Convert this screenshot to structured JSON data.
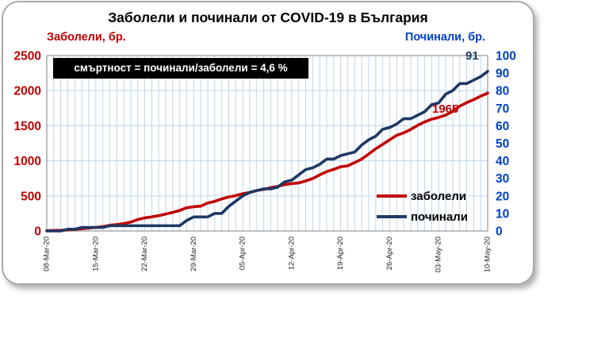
{
  "chart_data": {
    "type": "line",
    "title": "Заболели и починали от COVID-19 в България",
    "annotation": "смъртност = починали/заболели = 4,6 %",
    "grid_color": "#BDD7EE",
    "frame_color": "#808080",
    "legend_position": "inside-bottom-right",
    "left_axis": {
      "title": "Заболели, бр.",
      "min": 0,
      "max": 2500,
      "step": 500,
      "color": "#C00000",
      "ticks": [
        "0",
        "500",
        "1000",
        "1500",
        "2000",
        "2500"
      ]
    },
    "right_axis": {
      "title": "Починали, бр.",
      "min": 0,
      "max": 100,
      "step": 10,
      "color": "#0040C0",
      "ticks": [
        "0",
        "10",
        "20",
        "30",
        "40",
        "50",
        "60",
        "70",
        "80",
        "90",
        "100"
      ]
    },
    "x_tick_labels": [
      "08-Mar-20",
      "15-Mar-20",
      "22-Mar-20",
      "29-Mar-20",
      "05-Apr-20",
      "12-Apr-20",
      "19-Apr-20",
      "26-Apr-20",
      "03-May-20",
      "10-May-20"
    ],
    "x_tick_every_days": 7,
    "days": 64,
    "series": [
      {
        "name": "заболели",
        "axis": "left",
        "color": "#C00000",
        "end_label": "1965",
        "values": [
          4,
          6,
          10,
          15,
          23,
          31,
          41,
          51,
          62,
          81,
          92,
          105,
          127,
          163,
          187,
          201,
          218,
          242,
          264,
          293,
          331,
          346,
          354,
          399,
          422,
          457,
          485,
          503,
          531,
          549,
          577,
          593,
          618,
          635,
          661,
          675,
          685,
          713,
          747,
          800,
          846,
          878,
          915,
          929,
          975,
          1024,
          1097,
          1171,
          1234,
          1300,
          1363,
          1399,
          1447,
          1506,
          1555,
          1594,
          1618,
          1652,
          1704,
          1778,
          1829,
          1872,
          1921,
          1965
        ]
      },
      {
        "name": "починали",
        "axis": "right",
        "color": "#1F3864",
        "end_label": "91",
        "values": [
          0,
          0,
          0,
          1,
          1,
          2,
          2,
          2,
          2,
          3,
          3,
          3,
          3,
          3,
          3,
          3,
          3,
          3,
          3,
          3,
          6,
          8,
          8,
          8,
          10,
          10,
          14,
          17,
          20,
          22,
          23,
          24,
          24,
          25,
          28,
          29,
          32,
          35,
          36,
          38,
          41,
          41,
          43,
          44,
          45,
          49,
          52,
          54,
          58,
          59,
          61,
          64,
          64,
          66,
          68,
          72,
          73,
          78,
          80,
          84,
          84,
          86,
          88,
          91
        ]
      }
    ]
  }
}
